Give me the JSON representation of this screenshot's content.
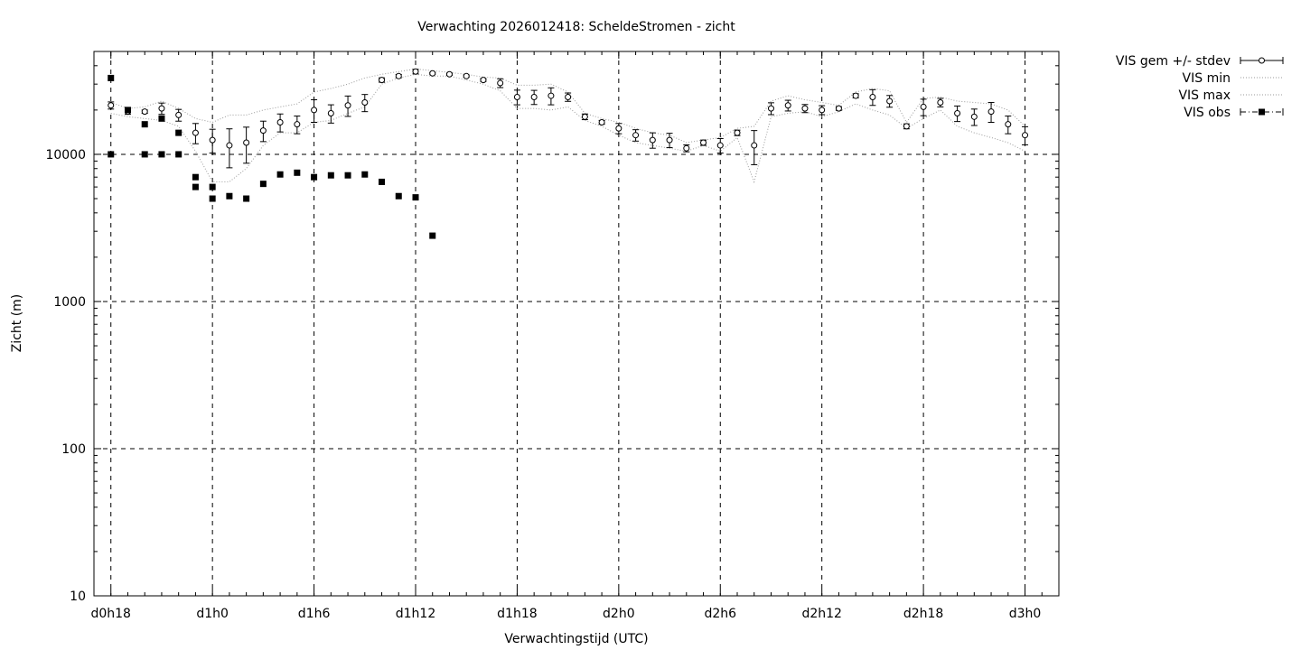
{
  "chart_data": {
    "type": "scatter",
    "title": "Verwachting 2026012418: ScheldeStromen - zicht",
    "xlabel": "Verwachtingstijd (UTC)",
    "ylabel": "Zicht (m)",
    "x_unit": "hours since d0h0",
    "xlim": [
      17,
      74
    ],
    "ylim": [
      10,
      50000
    ],
    "yscale": "log",
    "grid": true,
    "x_ticks": [
      {
        "x": 18,
        "label": "d0h18"
      },
      {
        "x": 24,
        "label": "d1h0"
      },
      {
        "x": 30,
        "label": "d1h6"
      },
      {
        "x": 36,
        "label": "d1h12"
      },
      {
        "x": 42,
        "label": "d1h18"
      },
      {
        "x": 48,
        "label": "d2h0"
      },
      {
        "x": 54,
        "label": "d2h6"
      },
      {
        "x": 60,
        "label": "d2h12"
      },
      {
        "x": 66,
        "label": "d2h18"
      },
      {
        "x": 72,
        "label": "d3h0"
      }
    ],
    "y_ticks": [
      {
        "y": 10,
        "label": "10"
      },
      {
        "y": 100,
        "label": "100"
      },
      {
        "y": 1000,
        "label": "1000"
      },
      {
        "y": 10000,
        "label": "10000"
      }
    ],
    "legend_position": "top-right, outside plot",
    "series": [
      {
        "name": "VIS gem +/- stdev",
        "style": "open-circle-errorbar",
        "x": [
          18,
          19,
          20,
          21,
          22,
          23,
          24,
          25,
          26,
          27,
          28,
          29,
          30,
          31,
          32,
          33,
          34,
          35,
          36,
          37,
          38,
          39,
          40,
          41,
          42,
          43,
          44,
          45,
          46,
          47,
          48,
          49,
          50,
          51,
          52,
          53,
          54,
          55,
          56,
          57,
          58,
          59,
          60,
          61,
          62,
          63,
          64,
          65,
          66,
          67,
          68,
          69,
          70,
          71,
          72
        ],
        "y": [
          21500,
          19500,
          19500,
          20500,
          18500,
          14000,
          12500,
          11500,
          12000,
          14500,
          16500,
          16000,
          20000,
          19000,
          21500,
          22500,
          32000,
          34000,
          36500,
          35500,
          35000,
          34000,
          32000,
          30500,
          24500,
          24500,
          25000,
          24500,
          18000,
          16500,
          15000,
          13500,
          12500,
          12500,
          11000,
          12000,
          11500,
          14000,
          11500,
          20500,
          21500,
          20500,
          20000,
          20500,
          25000,
          24500,
          23000,
          15500,
          21000,
          22500,
          19000,
          18000,
          19500,
          16000,
          13500
        ],
        "err": [
          1200,
          800,
          500,
          1800,
          1700,
          2200,
          2300,
          3400,
          3300,
          2300,
          2300,
          2200,
          3500,
          2700,
          3400,
          3000,
          1100,
          900,
          1300,
          500,
          600,
          600,
          700,
          2100,
          2800,
          2700,
          3300,
          1600,
          800,
          500,
          1200,
          1200,
          1500,
          1400,
          600,
          500,
          1300,
          600,
          3000,
          1900,
          1800,
          1300,
          1400,
          600,
          800,
          3000,
          2100,
          600,
          2700,
          1500,
          2300,
          2300,
          3000,
          2200,
          1900
        ]
      },
      {
        "name": "VIS min",
        "style": "dotted",
        "x": [
          18,
          19,
          20,
          21,
          22,
          23,
          24,
          25,
          26,
          27,
          28,
          29,
          30,
          31,
          32,
          33,
          34,
          35,
          36,
          37,
          38,
          39,
          40,
          41,
          42,
          43,
          44,
          45,
          46,
          47,
          48,
          49,
          50,
          51,
          52,
          53,
          54,
          55,
          56,
          57,
          58,
          59,
          60,
          61,
          62,
          63,
          64,
          65,
          66,
          67,
          68,
          69,
          70,
          71,
          72
        ],
        "y": [
          19000,
          18000,
          17500,
          17000,
          15500,
          10500,
          6500,
          6500,
          8000,
          11500,
          14000,
          14000,
          16500,
          17000,
          19000,
          21000,
          30000,
          33000,
          35000,
          34000,
          34000,
          32000,
          30000,
          27000,
          20500,
          20500,
          20000,
          21000,
          17000,
          15500,
          13500,
          12000,
          11500,
          11000,
          10500,
          11500,
          10500,
          13000,
          6500,
          18000,
          19000,
          19500,
          18000,
          19500,
          22000,
          20000,
          18500,
          15000,
          17500,
          20000,
          15500,
          14000,
          13000,
          12000,
          10500
        ]
      },
      {
        "name": "VIS max",
        "style": "dotted",
        "x": [
          18,
          19,
          20,
          21,
          22,
          23,
          24,
          25,
          26,
          27,
          28,
          29,
          30,
          31,
          32,
          33,
          34,
          35,
          36,
          37,
          38,
          39,
          40,
          41,
          42,
          43,
          44,
          45,
          46,
          47,
          48,
          49,
          50,
          51,
          52,
          53,
          54,
          55,
          56,
          57,
          58,
          59,
          60,
          61,
          62,
          63,
          64,
          65,
          66,
          67,
          68,
          69,
          70,
          71,
          72
        ],
        "y": [
          22500,
          20500,
          21000,
          23000,
          20500,
          17500,
          16500,
          18500,
          18500,
          20000,
          21000,
          22000,
          26500,
          28000,
          30000,
          33000,
          35000,
          36500,
          38000,
          37000,
          36000,
          35000,
          33500,
          33000,
          29500,
          29500,
          30000,
          26500,
          19000,
          17500,
          16500,
          15000,
          14000,
          13500,
          12000,
          12500,
          13000,
          15000,
          15500,
          23000,
          25000,
          23500,
          22500,
          21500,
          26500,
          28000,
          27000,
          16500,
          24000,
          24500,
          23000,
          22500,
          22000,
          20000,
          15500
        ]
      },
      {
        "name": "VIS obs",
        "style": "filled-square",
        "x": [
          18,
          18,
          19,
          20,
          20,
          21,
          21,
          22,
          22,
          23,
          23,
          24,
          24,
          25,
          26,
          27,
          28,
          29,
          30,
          31,
          32,
          33,
          34,
          35,
          36,
          37
        ],
        "y": [
          10000,
          33000,
          20000,
          10000,
          16000,
          10000,
          17500,
          10000,
          14000,
          6000,
          7000,
          5000,
          6000,
          5200,
          5000,
          6300,
          7300,
          7500,
          7000,
          7200,
          7200,
          7300,
          6500,
          5200,
          5100,
          2800
        ]
      }
    ]
  }
}
